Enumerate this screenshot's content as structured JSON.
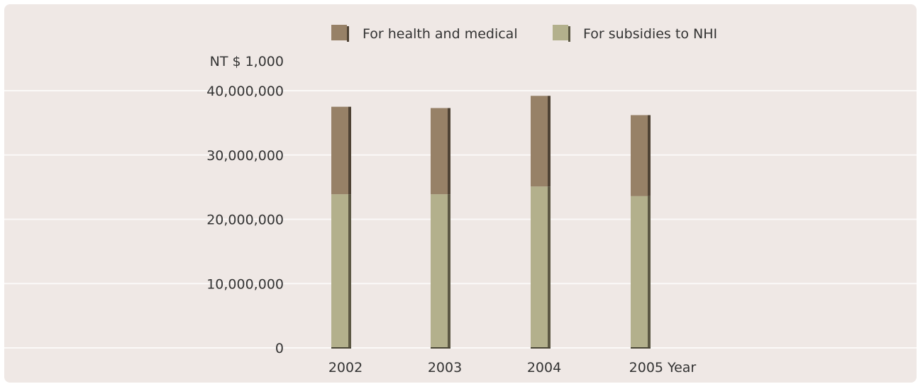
{
  "chart_data": {
    "type": "bar",
    "stacked": true,
    "unit_label": "NT $ 1,000",
    "categories": [
      "2002",
      "2003",
      "2004",
      "2005"
    ],
    "x_axis_suffix": "Year",
    "series": [
      {
        "name": "For subsidies to NHI",
        "values": [
          23900000,
          23900000,
          25100000,
          23600000
        ],
        "color": "#b3b08c",
        "shadow": "#5c5844"
      },
      {
        "name": "For health and medical",
        "values": [
          13600000,
          13400000,
          14100000,
          12600000
        ],
        "color": "#978167",
        "shadow": "#4e4234"
      }
    ],
    "y_ticks": [
      0,
      10000000,
      20000000,
      30000000,
      40000000
    ],
    "y_tick_labels": [
      "0",
      "10,000,000",
      "20,000,000",
      "30,000,000",
      "40,000,000"
    ],
    "ylim": [
      0,
      40000000
    ],
    "grid": true,
    "legend_position": "top"
  },
  "colors": {
    "background": "#efe8e5",
    "gridline": "#fbf9f8"
  }
}
